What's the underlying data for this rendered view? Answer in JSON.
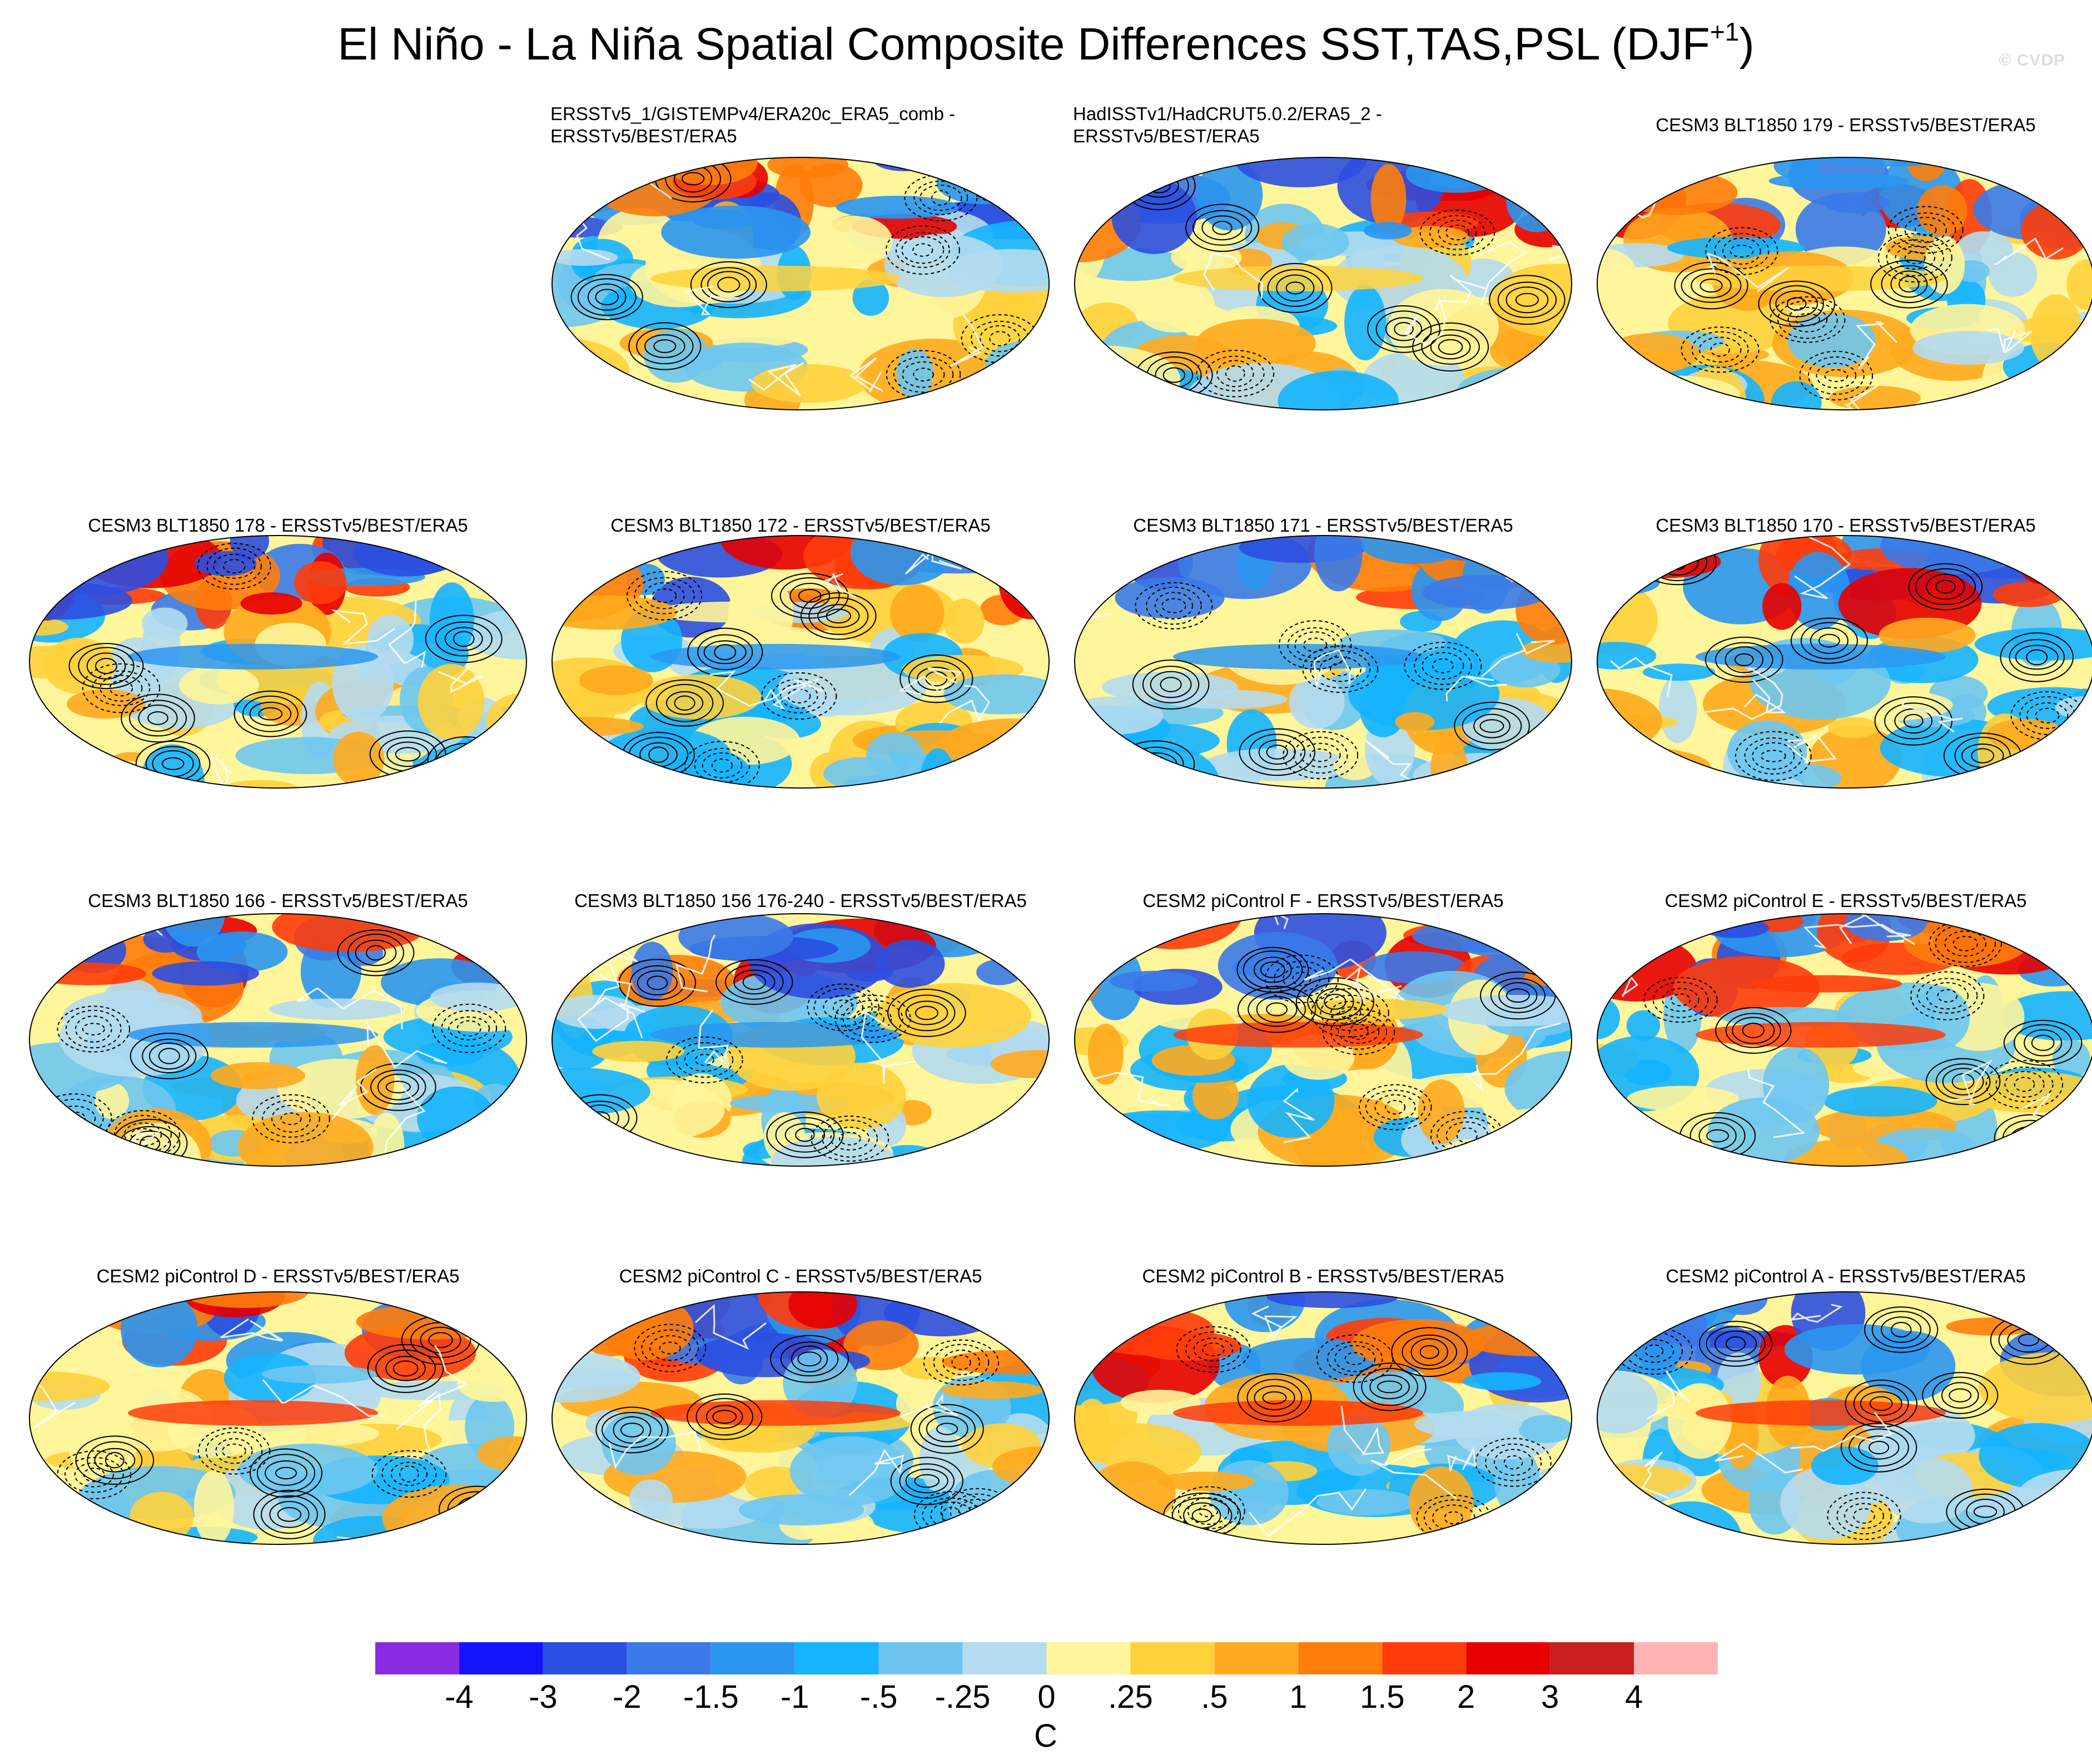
{
  "page": {
    "title_main": "El Niño - La Niña Spatial Composite Differences SST,TAS,PSL (DJF",
    "title_sup": "+1",
    "title_close": ")",
    "watermark": "© CVDP"
  },
  "panels": [
    {
      "title_lines": [
        "ERSSTv5_1/GISTEMPv4/ERA20c_ERA5_comb -",
        "ERSSTv5/BEST/ERA5"
      ]
    },
    {
      "title_lines": [
        "HadISSTv1/HadCRUT5.0.2/ERA5_2 -",
        "ERSSTv5/BEST/ERA5"
      ]
    },
    {
      "title_lines": [
        "CESM3 BLT1850 179 - ERSSTv5/BEST/ERA5"
      ]
    },
    {
      "title_lines": [
        "CESM3 BLT1850 178 - ERSSTv5/BEST/ERA5"
      ]
    },
    {
      "title_lines": [
        "CESM3 BLT1850 172 - ERSSTv5/BEST/ERA5"
      ]
    },
    {
      "title_lines": [
        "CESM3 BLT1850 171 - ERSSTv5/BEST/ERA5"
      ]
    },
    {
      "title_lines": [
        "CESM3 BLT1850 170 - ERSSTv5/BEST/ERA5"
      ]
    },
    {
      "title_lines": [
        "CESM3 BLT1850 166 - ERSSTv5/BEST/ERA5"
      ]
    },
    {
      "title_lines": [
        "CESM3 BLT1850 156 176-240 - ERSSTv5/BEST/ERA5"
      ]
    },
    {
      "title_lines": [
        "CESM2 piControl F - ERSSTv5/BEST/ERA5"
      ]
    },
    {
      "title_lines": [
        "CESM2 piControl E - ERSSTv5/BEST/ERA5"
      ]
    },
    {
      "title_lines": [
        "CESM2 piControl D - ERSSTv5/BEST/ERA5"
      ]
    },
    {
      "title_lines": [
        "CESM2 piControl C - ERSSTv5/BEST/ERA5"
      ]
    },
    {
      "title_lines": [
        "CESM2 piControl B - ERSSTv5/BEST/ERA5"
      ]
    },
    {
      "title_lines": [
        "CESM2 piControl A - ERSSTv5/BEST/ERA5"
      ]
    }
  ],
  "chart_data": {
    "type": "heatmap",
    "projection": "robinson",
    "overlay": "PSL contours (solid positive, dashed negative)",
    "colorbar": {
      "unit": "C",
      "ticks": [
        "-4",
        "-3",
        "-2",
        "-1.5",
        "-1",
        "-.5",
        "-.25",
        "0",
        ".25",
        ".5",
        "1",
        "1.5",
        "2",
        "3",
        "4"
      ],
      "colors": [
        "#8a2be2",
        "#1414ff",
        "#2b4fe0",
        "#3a7ae8",
        "#2a96f0",
        "#14b4ff",
        "#6ec6f0",
        "#b4dcf0",
        "#fff59a",
        "#ffd23c",
        "#ffaa1e",
        "#ff7d0a",
        "#ff3c0a",
        "#e60000",
        "#c81e1e",
        "#ffb4b4"
      ]
    }
  }
}
